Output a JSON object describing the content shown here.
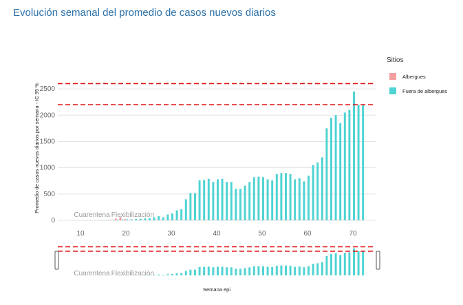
{
  "page": {
    "title": "Evolución semanal del promedio de casos nuevos diarios"
  },
  "legend": {
    "title": "Sitios",
    "items": [
      {
        "label": "Albergues",
        "color": "#f4a0a0"
      },
      {
        "label": "Fuera de albergues",
        "color": "#4fd3d3"
      }
    ]
  },
  "chart_data": {
    "type": "bar",
    "xlabel": "Semana epi",
    "ylabel": "Promedio de casos nuevos diarios por semana - IC 95 %",
    "xlim": [
      5,
      75
    ],
    "ylim": [
      0,
      2750
    ],
    "xticks": [
      10,
      20,
      30,
      40,
      50,
      60,
      70
    ],
    "yticks": [
      0,
      500,
      1000,
      1500,
      2000,
      2500
    ],
    "reference_lines": [
      2600,
      2200
    ],
    "annotations": [
      {
        "text": "Cuarentena",
        "x": 12.5
      },
      {
        "text": "Flexibilización",
        "x": 21.5
      }
    ],
    "x": [
      11,
      12,
      13,
      14,
      15,
      16,
      17,
      18,
      19,
      20,
      21,
      22,
      23,
      24,
      25,
      26,
      27,
      28,
      29,
      30,
      31,
      32,
      33,
      34,
      35,
      36,
      37,
      38,
      39,
      40,
      41,
      42,
      43,
      44,
      45,
      46,
      47,
      48,
      49,
      50,
      51,
      52,
      53,
      54,
      55,
      56,
      57,
      58,
      59,
      60,
      61,
      62,
      63,
      64,
      65,
      66,
      67,
      68,
      69,
      70,
      71,
      72
    ],
    "series": [
      {
        "name": "Albergues",
        "color": "#f4a0a0",
        "values": [
          0,
          0,
          0,
          1,
          2,
          3,
          10,
          35,
          55,
          20,
          5,
          3,
          2,
          2,
          3,
          5,
          8,
          10,
          5,
          6,
          5,
          4,
          6,
          5,
          6,
          5,
          6,
          5,
          6,
          5,
          5,
          6,
          5,
          6,
          5,
          6,
          6,
          6,
          6,
          5,
          6,
          5,
          6,
          5,
          6,
          5,
          6,
          5,
          5,
          6,
          5,
          6,
          5,
          6,
          5,
          6,
          6,
          6,
          6,
          6,
          6,
          6
        ],
        "errors": [
          0,
          0,
          0,
          0,
          0,
          0,
          0,
          0,
          15,
          0,
          0,
          0,
          0,
          0,
          0,
          0,
          0,
          0,
          0,
          0,
          0,
          0,
          0,
          0,
          0,
          0,
          0,
          0,
          0,
          0,
          0,
          0,
          0,
          0,
          0,
          0,
          0,
          0,
          0,
          0,
          0,
          0,
          0,
          0,
          0,
          0,
          0,
          0,
          0,
          0,
          0,
          0,
          0,
          0,
          0,
          0,
          0,
          0,
          0,
          0,
          0,
          0
        ]
      },
      {
        "name": "Fuera de albergues",
        "color": "#4fd3d3",
        "values": [
          2,
          3,
          4,
          5,
          6,
          8,
          10,
          12,
          15,
          18,
          20,
          25,
          30,
          35,
          40,
          60,
          80,
          60,
          110,
          130,
          190,
          210,
          400,
          520,
          520,
          760,
          770,
          790,
          730,
          780,
          790,
          730,
          730,
          600,
          600,
          660,
          730,
          820,
          830,
          820,
          780,
          760,
          880,
          900,
          900,
          880,
          780,
          800,
          740,
          850,
          1050,
          1100,
          1200,
          1750,
          1950,
          2000,
          1850,
          2050,
          2100,
          2450,
          2200,
          2200
        ],
        "errors": [
          0,
          0,
          0,
          0,
          0,
          0,
          0,
          0,
          0,
          0,
          0,
          0,
          0,
          0,
          0,
          0,
          0,
          0,
          0,
          0,
          0,
          0,
          0,
          0,
          0,
          0,
          0,
          0,
          0,
          0,
          0,
          0,
          0,
          0,
          0,
          0,
          0,
          0,
          0,
          0,
          0,
          0,
          0,
          0,
          0,
          0,
          0,
          0,
          0,
          0,
          0,
          0,
          0,
          0,
          0,
          0,
          0,
          0,
          0,
          0,
          0,
          0
        ]
      }
    ]
  }
}
